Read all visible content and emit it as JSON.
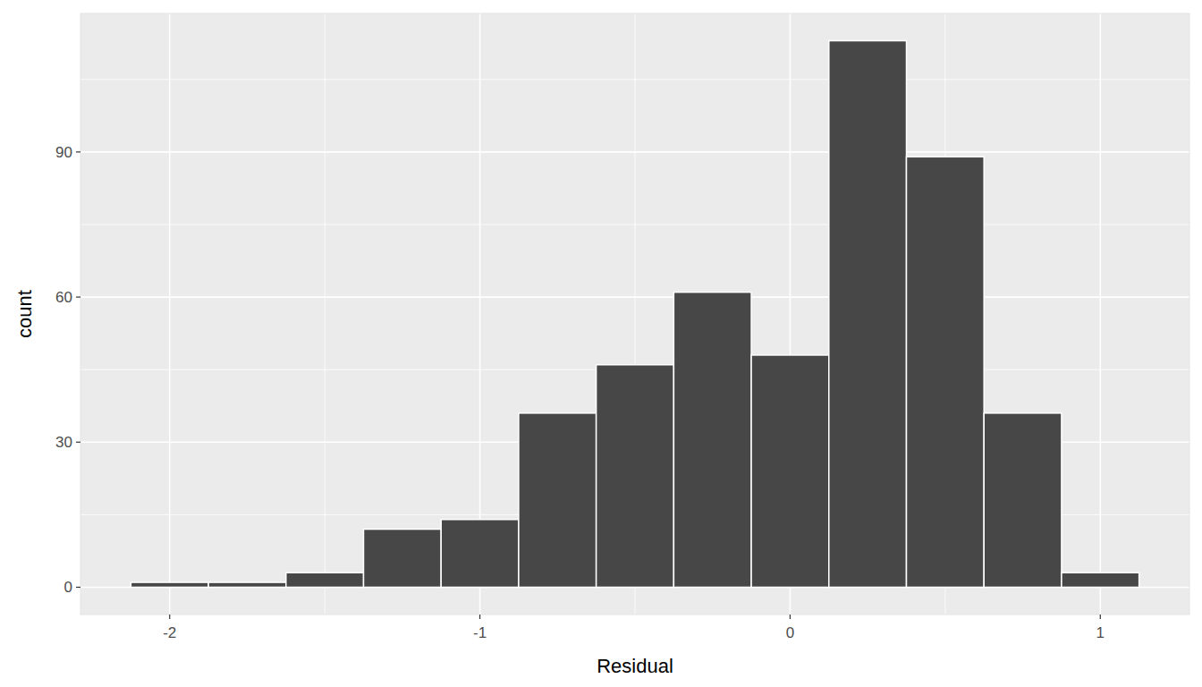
{
  "chart_data": {
    "type": "histogram",
    "x_label": "Residual",
    "y_label": "count",
    "bins": [
      -2.125,
      -1.875,
      -1.625,
      -1.375,
      -1.125,
      -0.875,
      -0.625,
      -0.375,
      -0.125,
      0.125,
      0.375,
      0.625,
      0.875,
      1.125
    ],
    "values": [
      1,
      1,
      3,
      12,
      14,
      36,
      46,
      61,
      48,
      113,
      89,
      36,
      3
    ],
    "color": "#474747",
    "xlim": [
      -2.2875,
      1.2875
    ],
    "xticks": [
      -2,
      -1,
      0,
      1
    ],
    "ylim": [
      -5.65,
      118.65
    ],
    "yticks": [
      0,
      30,
      60,
      90
    ],
    "grid": true
  }
}
